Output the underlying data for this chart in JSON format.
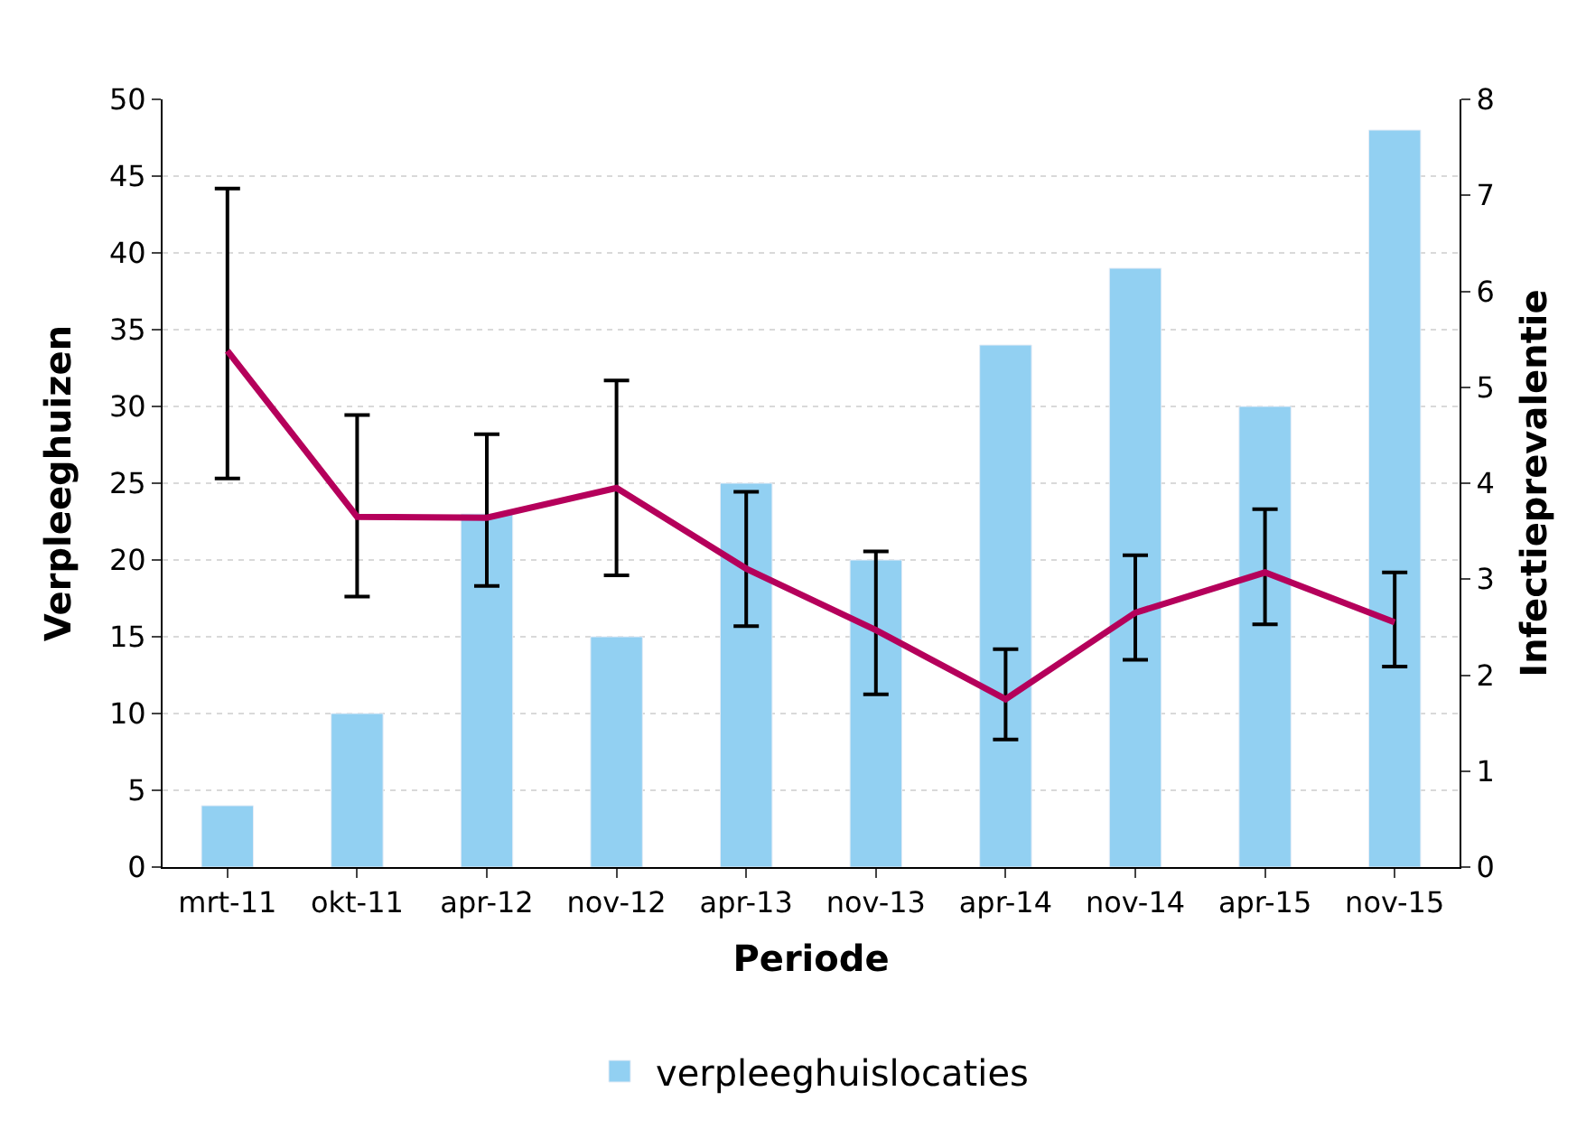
{
  "chart_data": {
    "type": "bar",
    "xlabel": "Periode",
    "ylabel": "Verpleeghuizen",
    "y2label": "Infectieprevalentie",
    "categories": [
      "mrt-11",
      "okt-11",
      "apr-12",
      "nov-12",
      "apr-13",
      "nov-13",
      "apr-14",
      "nov-14",
      "apr-15",
      "nov-15"
    ],
    "series": [
      {
        "name": "verpleeghuislocaties",
        "color": "#92d0f2",
        "values": [
          4,
          10,
          23,
          15,
          25,
          20,
          34,
          39,
          30,
          48
        ]
      },
      {
        "type": "line",
        "axis": "y2",
        "color": "#b5005b",
        "values": [
          5.38,
          3.65,
          3.64,
          3.95,
          3.11,
          2.47,
          1.75,
          2.65,
          3.07,
          2.55
        ],
        "errors": [
          [
            4.05,
            7.07
          ],
          [
            2.82,
            4.71
          ],
          [
            2.93,
            4.51
          ],
          [
            3.04,
            5.07
          ],
          [
            2.51,
            3.91
          ],
          [
            1.8,
            3.29
          ],
          [
            1.33,
            2.27
          ],
          [
            2.16,
            3.25
          ],
          [
            2.53,
            3.73
          ],
          [
            2.09,
            3.07
          ]
        ]
      }
    ],
    "ylim": [
      0,
      50
    ],
    "yticks": [
      0,
      5,
      10,
      15,
      20,
      25,
      30,
      35,
      40,
      45,
      50
    ],
    "y2lim": [
      0,
      8
    ],
    "y2ticks": [
      0,
      1,
      2,
      3,
      4,
      5,
      6,
      7,
      8
    ],
    "grid": "y",
    "legend": "bottom",
    "marker": "none",
    "line_style": "solid"
  }
}
